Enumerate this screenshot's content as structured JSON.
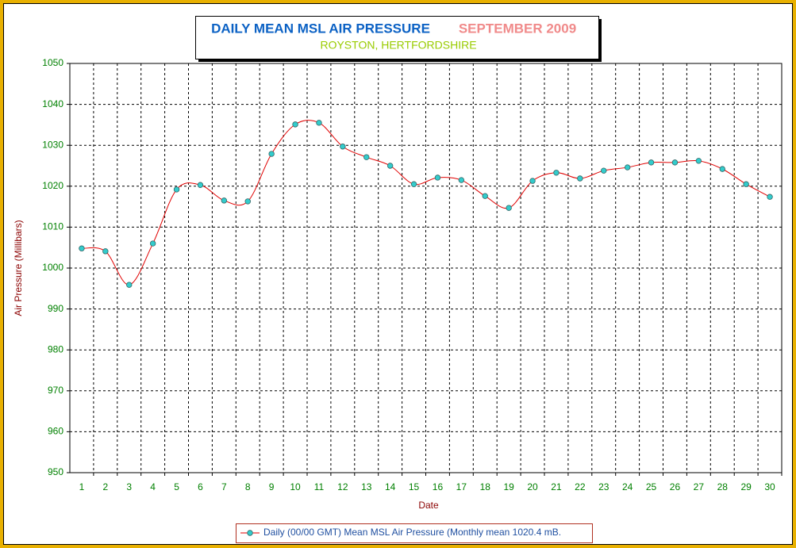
{
  "chart_data": {
    "type": "line",
    "title": "DAILY MEAN MSL AIR PRESSURE",
    "title_period": "SEPTEMBER 2009",
    "subtitle": "ROYSTON, HERTFORDSHIRE",
    "x_label": "Date",
    "y_label": "Air Pressure (Millibars)",
    "categories": [
      "1",
      "2",
      "3",
      "4",
      "5",
      "6",
      "7",
      "8",
      "9",
      "10",
      "11",
      "12",
      "13",
      "14",
      "15",
      "16",
      "17",
      "18",
      "19",
      "20",
      "21",
      "22",
      "23",
      "24",
      "25",
      "26",
      "27",
      "28",
      "29",
      "30"
    ],
    "series": [
      {
        "name": "Daily (00/00 GMT) Mean MSL Air Pressure (Monthly mean 1020.4 mB.",
        "color": "#e00000",
        "marker_color": "#33cccc",
        "smooth": true,
        "values": [
          1004.8,
          1004.1,
          995.9,
          1006.0,
          1019.2,
          1020.3,
          1016.5,
          1016.3,
          1027.9,
          1035.1,
          1035.5,
          1029.7,
          1027.1,
          1025.0,
          1020.5,
          1022.1,
          1021.5,
          1017.6,
          1014.7,
          1021.3,
          1023.3,
          1021.9,
          1023.8,
          1024.6,
          1025.8,
          1025.8,
          1026.2,
          1024.2,
          1020.5,
          1017.4
        ]
      }
    ],
    "ylim": [
      950,
      1050
    ],
    "yticks": [
      950,
      960,
      970,
      980,
      990,
      1000,
      1010,
      1020,
      1030,
      1040,
      1050
    ],
    "grid": true,
    "legend": "bottom"
  }
}
